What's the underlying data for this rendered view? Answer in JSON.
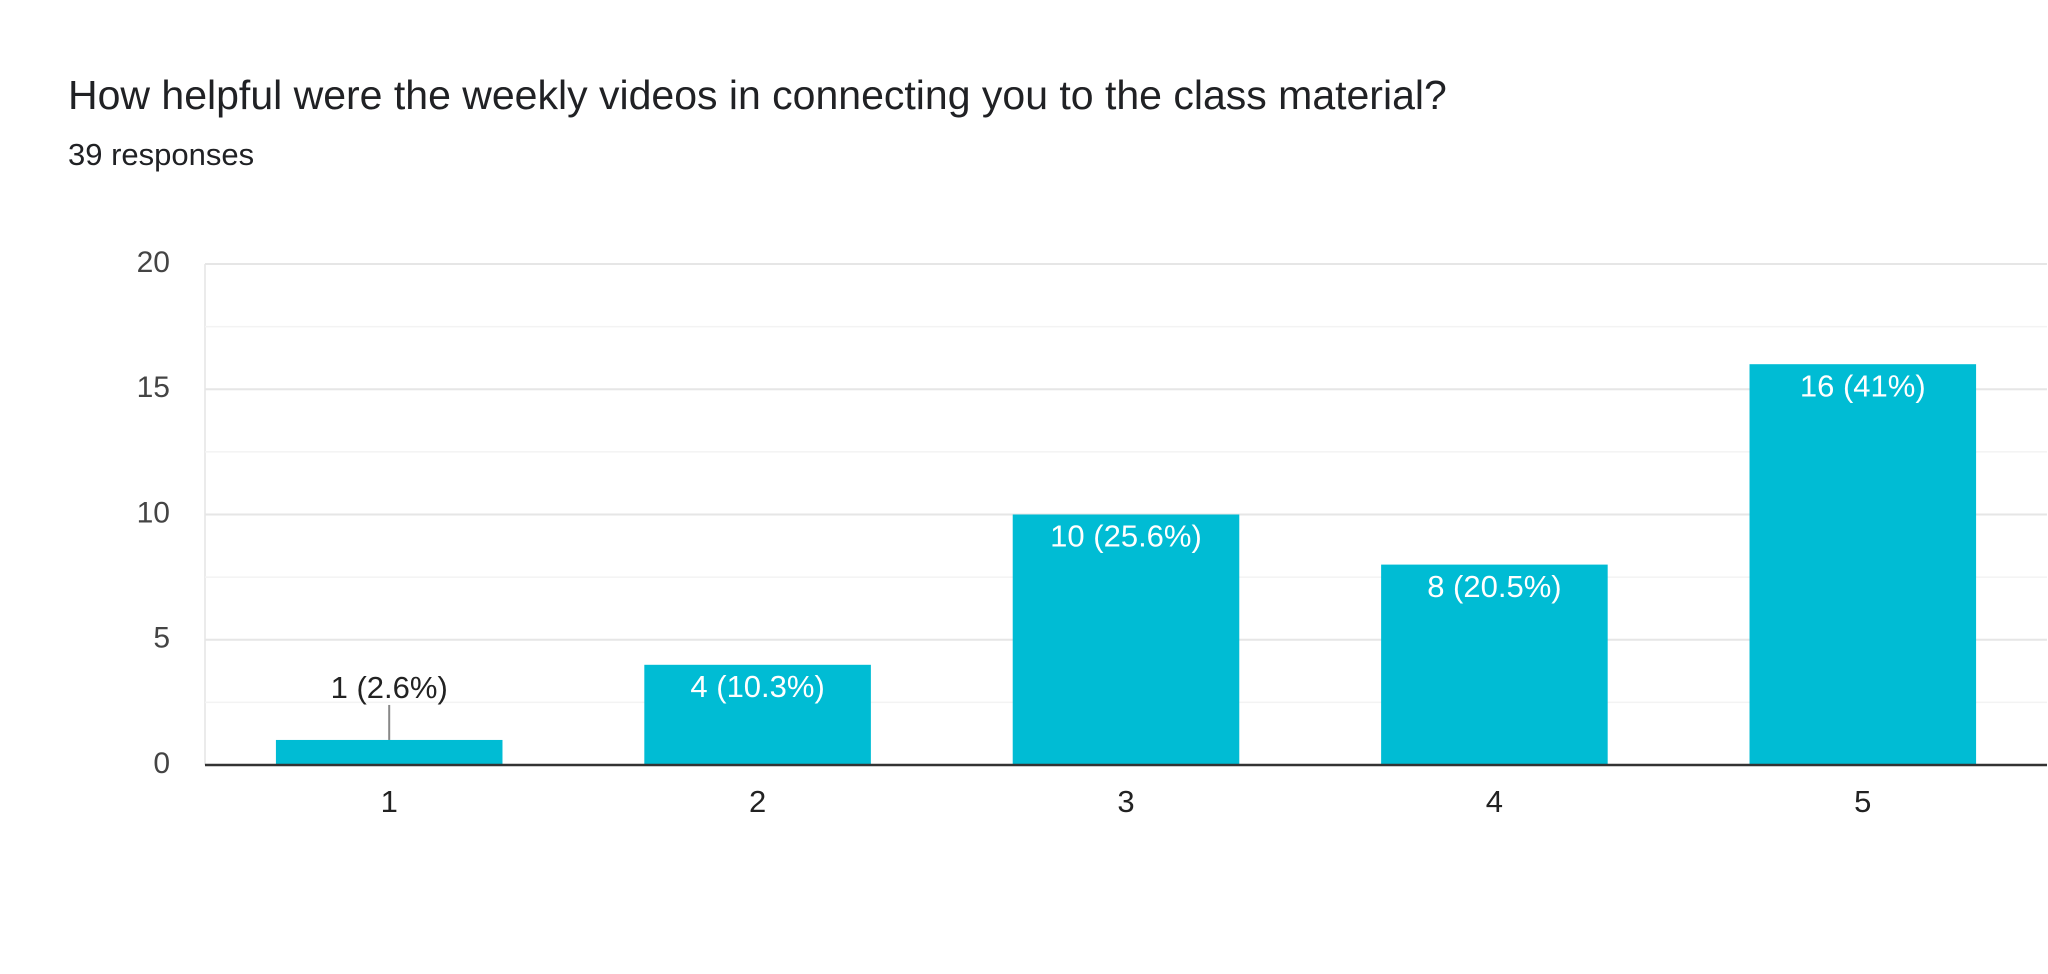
{
  "chart_data": {
    "type": "bar",
    "title": "How helpful were the weekly videos in connecting you to the class material?",
    "subtitle": "39 responses",
    "categories": [
      "1",
      "2",
      "3",
      "4",
      "5"
    ],
    "values": [
      1,
      4,
      10,
      8,
      16
    ],
    "value_labels": [
      "1 (2.6%)",
      "4 (10.3%)",
      "10 (25.6%)",
      "8 (20.5%)",
      "16 (41%)"
    ],
    "color": "#00bcd4",
    "ylim": [
      0,
      20
    ],
    "yticks": [
      0,
      5,
      10,
      15,
      20
    ],
    "grid": true
  }
}
